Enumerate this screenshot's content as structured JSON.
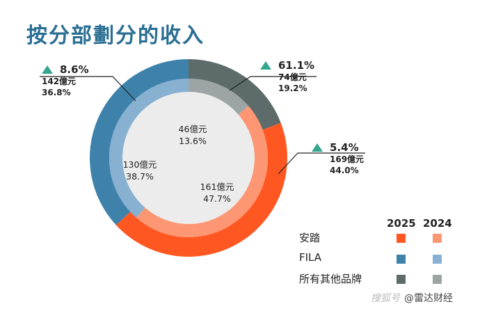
{
  "title": "按分部劃分的收入",
  "chart_data": {
    "type": "donut",
    "rings": [
      {
        "name": "2025",
        "series": [
          {
            "name": "所有其他品牌",
            "value": 74,
            "pct": "19.2%",
            "color": "#5d6b6b"
          },
          {
            "name": "安踏",
            "value": 169,
            "pct": "44.0%",
            "color": "#ff5722"
          },
          {
            "name": "FILA",
            "value": 142,
            "pct": "36.8%",
            "color": "#3e82ab"
          }
        ]
      },
      {
        "name": "2024",
        "series": [
          {
            "name": "所有其他品牌",
            "value": 46,
            "pct": "13.6%",
            "color": "#9da5a4"
          },
          {
            "name": "安踏",
            "value": 161,
            "pct": "47.7%",
            "color": "#fd9673"
          },
          {
            "name": "FILA",
            "value": 130,
            "pct": "38.7%",
            "color": "#88b0d0"
          }
        ]
      }
    ],
    "unit": "億元",
    "annotations": [
      {
        "brand": "FILA",
        "change": "8.6%",
        "value_label": "142億元",
        "pct": "36.8%"
      },
      {
        "brand": "所有其他品牌",
        "change": "61.1%",
        "value_label": "74億元",
        "pct": "19.2%"
      },
      {
        "brand": "安踏",
        "change": "5.4%",
        "value_label": "169億元",
        "pct": "44.0%"
      }
    ],
    "inner_labels": [
      {
        "value_label": "46億元",
        "pct": "13.6%"
      },
      {
        "value_label": "130億元",
        "pct": "38.7%"
      },
      {
        "value_label": "161億元",
        "pct": "47.7%"
      }
    ],
    "legend": {
      "years": [
        "2025",
        "2024"
      ],
      "rows": [
        {
          "label": "安踏",
          "colors": [
            "#ff5722",
            "#fd9673"
          ]
        },
        {
          "label": "FILA",
          "colors": [
            "#3e82ab",
            "#88b0d0"
          ]
        },
        {
          "label": "所有其他品牌",
          "colors": [
            "#5d6b6b",
            "#9da5a4"
          ]
        }
      ]
    },
    "change_marker_color": "#34a58e",
    "center_color": "#ececec"
  },
  "watermark": {
    "left": "搜狐号",
    "right": "@雷达财经"
  }
}
